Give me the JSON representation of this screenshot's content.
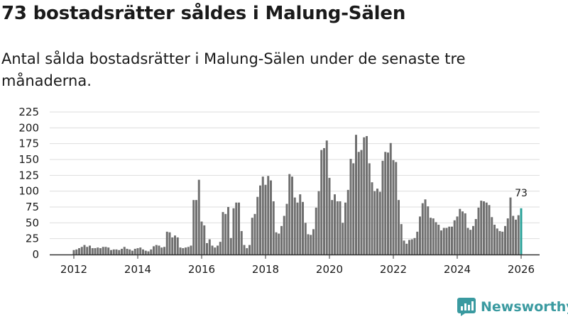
{
  "header": {
    "title": "73 bostadsrätter såldes i Malung-Sälen",
    "subtitle": "Antal sålda bostadsrätter i Malung-Sälen under de senaste tre månaderna."
  },
  "brand": {
    "name": "Newsworthy",
    "icon": "newsworthy-logo-icon",
    "color": "#3a9aa0"
  },
  "colors": {
    "bar": "#707070",
    "highlight": "#2aa198",
    "grid": "#dddddd",
    "axis": "#333333"
  },
  "chart_data": {
    "type": "bar",
    "title": "73 bostadsrätter såldes i Malung-Sälen",
    "xlabel": "",
    "ylabel": "",
    "ylim": [
      0,
      225
    ],
    "yticks": [
      0,
      25,
      50,
      75,
      100,
      125,
      150,
      175,
      200,
      225
    ],
    "xticks": [
      "2012",
      "2014",
      "2016",
      "2018",
      "2020",
      "2022",
      "2024",
      "2026"
    ],
    "grid": true,
    "x_start": {
      "year": 2012,
      "month": 1
    },
    "highlight_label": "73",
    "values": [
      7,
      8,
      10,
      12,
      15,
      12,
      14,
      10,
      10,
      11,
      10,
      12,
      12,
      11,
      7,
      8,
      8,
      7,
      9,
      12,
      9,
      8,
      6,
      9,
      10,
      11,
      8,
      6,
      5,
      8,
      13,
      15,
      14,
      11,
      12,
      36,
      35,
      27,
      30,
      27,
      11,
      10,
      11,
      12,
      14,
      86,
      86,
      118,
      52,
      46,
      18,
      24,
      14,
      11,
      14,
      20,
      67,
      64,
      75,
      26,
      73,
      82,
      82,
      37,
      15,
      10,
      15,
      58,
      64,
      91,
      109,
      123,
      110,
      124,
      117,
      84,
      35,
      33,
      45,
      61,
      80,
      127,
      123,
      90,
      82,
      95,
      83,
      50,
      32,
      31,
      40,
      74,
      100,
      165,
      168,
      180,
      121,
      86,
      95,
      84,
      84,
      50,
      82,
      102,
      151,
      144,
      189,
      162,
      165,
      185,
      187,
      144,
      114,
      100,
      104,
      99,
      148,
      162,
      161,
      176,
      149,
      146,
      86,
      48,
      22,
      17,
      23,
      24,
      26,
      36,
      60,
      81,
      87,
      76,
      58,
      57,
      51,
      47,
      38,
      42,
      42,
      44,
      44,
      54,
      60,
      72,
      68,
      65,
      42,
      39,
      45,
      56,
      74,
      85,
      84,
      82,
      78,
      59,
      47,
      41,
      37,
      36,
      45,
      57,
      90,
      61,
      55,
      62,
      73
    ]
  }
}
